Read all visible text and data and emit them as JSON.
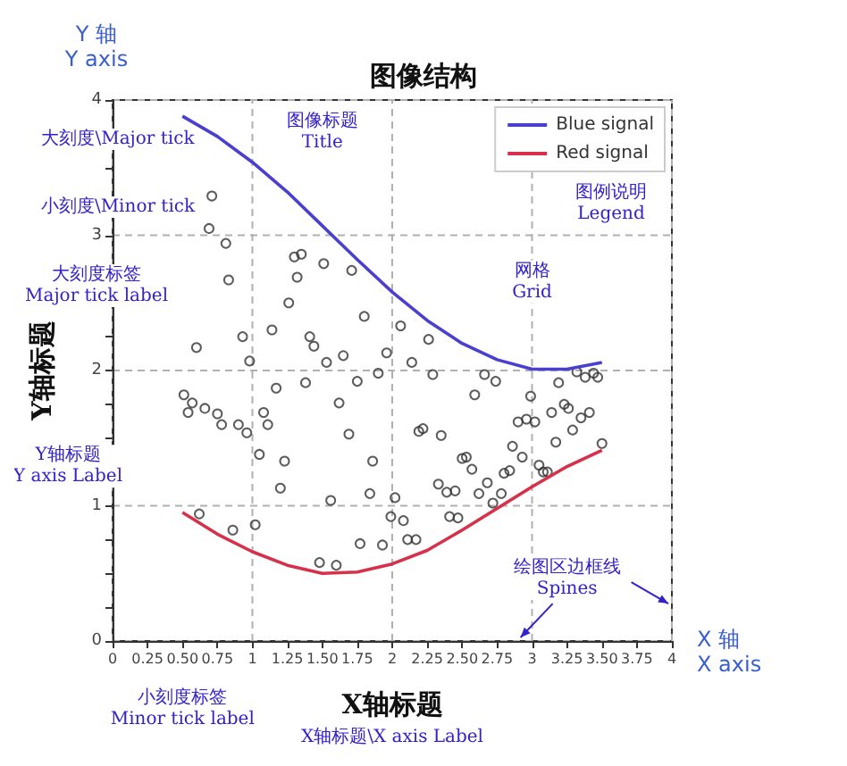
{
  "chart_data": {
    "type": "line",
    "title": "图像结构",
    "xlabel": "X轴标题",
    "ylabel": "Y轴标题",
    "xlim": [
      0,
      4
    ],
    "ylim": [
      0,
      4
    ],
    "xticks": [
      0,
      {
        "value": 0.25,
        "label": "0.25"
      },
      {
        "value": 0.5,
        "label": "0.50"
      },
      {
        "value": 0.75,
        "label": "0.75"
      },
      1,
      {
        "value": 1.25,
        "label": "1.25"
      },
      {
        "value": 1.5,
        "label": "1.50"
      },
      {
        "value": 1.75,
        "label": "1.75"
      },
      2,
      {
        "value": 2.25,
        "label": "2.25"
      },
      {
        "value": 2.5,
        "label": "2.50"
      },
      {
        "value": 2.75,
        "label": "2.75"
      },
      3,
      {
        "value": 3.25,
        "label": "3.25"
      },
      {
        "value": 3.5,
        "label": "3.50"
      },
      {
        "value": 3.75,
        "label": "3.75"
      },
      4
    ],
    "yticks": [
      0,
      {
        "value": 0.25,
        "label": null
      },
      {
        "value": 0.5,
        "label": null
      },
      {
        "value": 0.75,
        "label": null
      },
      1,
      {
        "value": 1.25,
        "label": null
      },
      {
        "value": 1.5,
        "label": null
      },
      {
        "value": 1.75,
        "label": null
      },
      2,
      {
        "value": 2.25,
        "label": null
      },
      {
        "value": 2.5,
        "label": null
      },
      {
        "value": 2.75,
        "label": null
      },
      3,
      {
        "value": 3.25,
        "label": null
      },
      {
        "value": 3.5,
        "label": null
      },
      {
        "value": 3.75,
        "label": null
      },
      4
    ],
    "grid": true,
    "legend": "top right",
    "series": [
      {
        "name": "Blue signal",
        "color": "#4b3fd0",
        "x": [
          0.5,
          0.75,
          1,
          1.25,
          1.5,
          1.75,
          2,
          2.25,
          2.5,
          2.75,
          3,
          3.25,
          3.5
        ],
        "values": [
          3.88,
          3.73,
          3.54,
          3.32,
          3.07,
          2.82,
          2.58,
          2.37,
          2.2,
          2.08,
          2.01,
          2.01,
          2.06
        ]
      },
      {
        "name": "Red signal",
        "color": "#d6304a",
        "x": [
          0.5,
          0.75,
          1,
          1.25,
          1.5,
          1.75,
          2,
          2.25,
          2.5,
          2.75,
          3,
          3.25,
          3.5
        ],
        "values": [
          0.95,
          0.79,
          0.66,
          0.56,
          0.5,
          0.51,
          0.57,
          0.67,
          0.82,
          0.98,
          1.14,
          1.29,
          1.41
        ]
      },
      {
        "type": "scatter",
        "marker": "circle",
        "color": "#333333",
        "x": [
          0.71,
          0.69,
          0.81,
          0.83,
          1.3,
          1.35,
          1.51,
          1.32,
          1.71,
          1.26,
          1.8,
          1.14,
          0.93,
          1.41,
          1.44,
          0.6,
          1.65,
          1.96,
          2.06,
          2.26,
          0.98,
          1.53,
          2.14,
          0.51,
          0.54,
          0.57,
          0.66,
          0.75,
          0.78,
          0.9,
          0.96,
          1.17,
          1.08,
          1.11,
          1.38,
          1.62,
          1.75,
          1.9,
          1.69,
          1.05,
          1.23,
          1.2,
          1.86,
          1.56,
          1.84,
          2.02,
          0.62,
          1.99,
          2.08,
          0.86,
          1.02,
          1.77,
          1.93,
          2.11,
          2.17,
          1.48,
          1.6,
          2.19,
          2.22,
          2.29,
          2.66,
          2.74,
          2.59,
          2.99,
          3.19,
          3.32,
          3.38,
          3.44,
          3.47,
          2.35,
          2.9,
          2.96,
          3.02,
          3.14,
          3.23,
          3.26,
          3.29,
          3.35,
          3.41,
          3.17,
          3.5,
          2.86,
          2.93,
          2.5,
          2.53,
          2.57,
          3.05,
          3.08,
          3.11,
          2.8,
          2.84,
          2.68,
          2.62,
          2.78,
          2.72,
          2.33,
          2.39,
          2.45,
          2.41,
          2.47
        ],
        "values": [
          3.29,
          3.05,
          2.94,
          2.67,
          2.84,
          2.86,
          2.79,
          2.69,
          2.74,
          2.5,
          2.4,
          2.3,
          2.25,
          2.25,
          2.18,
          2.17,
          2.11,
          2.13,
          2.33,
          2.23,
          2.07,
          2.06,
          2.06,
          1.82,
          1.69,
          1.76,
          1.72,
          1.68,
          1.6,
          1.6,
          1.54,
          1.87,
          1.69,
          1.6,
          1.91,
          1.76,
          1.92,
          1.98,
          1.53,
          1.38,
          1.33,
          1.13,
          1.33,
          1.04,
          1.09,
          1.06,
          0.94,
          0.92,
          0.89,
          0.82,
          0.86,
          0.72,
          0.71,
          0.75,
          0.75,
          0.58,
          0.56,
          1.55,
          1.57,
          1.97,
          1.97,
          1.92,
          1.82,
          1.81,
          1.91,
          1.99,
          1.95,
          1.98,
          1.95,
          1.52,
          1.62,
          1.64,
          1.62,
          1.69,
          1.75,
          1.72,
          1.56,
          1.65,
          1.69,
          1.47,
          1.46,
          1.44,
          1.36,
          1.35,
          1.36,
          1.27,
          1.3,
          1.25,
          1.25,
          1.24,
          1.26,
          1.17,
          1.09,
          1.09,
          1.02,
          1.16,
          1.1,
          1.11,
          0.92,
          0.91
        ]
      }
    ],
    "annotations": [
      "Y 轴\nY axis",
      "大刻度\\Major tick",
      "小刻度\\Minor tick",
      "大刻度标签\nMajor tick label",
      "图像标题\nTitle",
      "图例说明\nLegend",
      "网格\nGrid",
      "Y轴标题\nY axis Label",
      "绘图区边框线\nSpines",
      "X 轴\nX axis",
      "小刻度标签\nMinor tick label",
      "X轴标题\\X axis Label"
    ]
  }
}
